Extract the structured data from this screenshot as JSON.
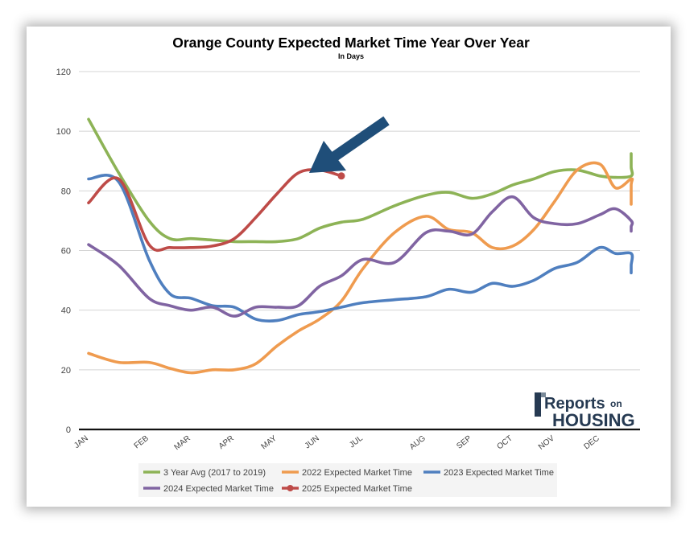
{
  "chart_data": {
    "type": "line",
    "title": "Orange County Expected Market Time Year Over Year",
    "subtitle": "In Days",
    "xlabel": "",
    "ylabel": "",
    "ylim": [
      0,
      120
    ],
    "yticks": [
      "0",
      "20",
      "40",
      "60",
      "80",
      "100",
      "120"
    ],
    "grid": true,
    "legend_position": "bottom",
    "month_labels": [
      "JAN",
      "FEB",
      "MAR",
      "APR",
      "MAY",
      "JUN",
      "JUL",
      "AUG",
      "SEP",
      "OCT",
      "NOV",
      "DEC"
    ],
    "x_range": [
      0,
      13
    ],
    "series": [
      {
        "name": "3 Year Avg (2017 to 2019)",
        "color": "#8db356",
        "x": [
          0,
          0.5,
          1,
          1.5,
          2,
          2.5,
          3,
          3.5,
          4,
          4.5,
          5,
          5.5,
          6,
          6.5,
          7,
          7.5,
          8,
          8.5,
          9,
          9.5,
          10,
          10.5,
          11,
          11.5,
          12,
          12.5,
          13
        ],
        "values": [
          104,
          86,
          70,
          64,
          64,
          63.5,
          63,
          63,
          63,
          64,
          67.5,
          69.5,
          70.5,
          75,
          78.5,
          79.5,
          77.5,
          79,
          82,
          84,
          86.5,
          87,
          85,
          84.5,
          85,
          88,
          92.5
        ]
      },
      {
        "name": "2022 Expected Market Time",
        "color": "#ef9b4f",
        "x": [
          0,
          0.5,
          1,
          1.5,
          2,
          2.5,
          3,
          3.5,
          4,
          4.5,
          5,
          5.5,
          6,
          6.5,
          7,
          7.5,
          8,
          8.5,
          9,
          9.5,
          10,
          10.5,
          11,
          11.5,
          12,
          12.5,
          13
        ],
        "values": [
          25.5,
          22.5,
          22.5,
          20.5,
          19,
          20,
          20,
          22,
          28,
          33,
          37,
          43,
          54,
          66,
          71.5,
          67,
          66,
          61,
          61.5,
          67,
          76.5,
          87,
          89,
          81,
          84,
          82,
          75.5
        ]
      },
      {
        "name": "2023 Expected Market Time",
        "color": "#4f7fbf",
        "x": [
          0,
          0.5,
          1,
          1.5,
          2,
          2.5,
          3,
          3.5,
          4,
          4.5,
          5,
          5.5,
          6,
          6.5,
          7,
          7.5,
          8,
          8.5,
          9,
          9.5,
          10,
          10.5,
          11,
          11.5,
          12,
          12.5,
          13
        ],
        "values": [
          84,
          83,
          57,
          45.5,
          44,
          41.5,
          41,
          37,
          36.5,
          38.5,
          39.5,
          41,
          42.5,
          43.5,
          44.5,
          47,
          46,
          49,
          48,
          50,
          54,
          56,
          61,
          59,
          59,
          55,
          52.5
        ]
      },
      {
        "name": "2024 Expected Market Time",
        "color": "#8064a2",
        "x": [
          0,
          0.5,
          1,
          1.5,
          2,
          2.5,
          3,
          3.5,
          4,
          4.5,
          5,
          5.5,
          6,
          6.5,
          7,
          7.5,
          8,
          8.5,
          9,
          9.5,
          10,
          10.5,
          11,
          11.5,
          12,
          12.5,
          13
        ],
        "values": [
          62,
          55,
          44,
          41.5,
          40,
          41,
          38,
          41,
          41,
          41.5,
          48,
          51.5,
          57,
          56,
          66,
          66.5,
          65.5,
          73,
          78,
          71,
          69,
          69,
          72,
          74,
          70,
          68,
          66.5
        ]
      },
      {
        "name": "2025 Expected Market Time",
        "color": "#be4b48",
        "x": [
          0,
          0.5,
          1,
          1.5,
          2,
          2.5,
          3,
          3.5,
          4,
          4.5,
          5,
          5.5
        ],
        "values": [
          76,
          84,
          62,
          61,
          61,
          61.5,
          64,
          71,
          79,
          86,
          87,
          85
        ]
      }
    ]
  },
  "logo": {
    "text_reports": "Reports",
    "text_on": "on",
    "text_housing": "HOUSING"
  }
}
